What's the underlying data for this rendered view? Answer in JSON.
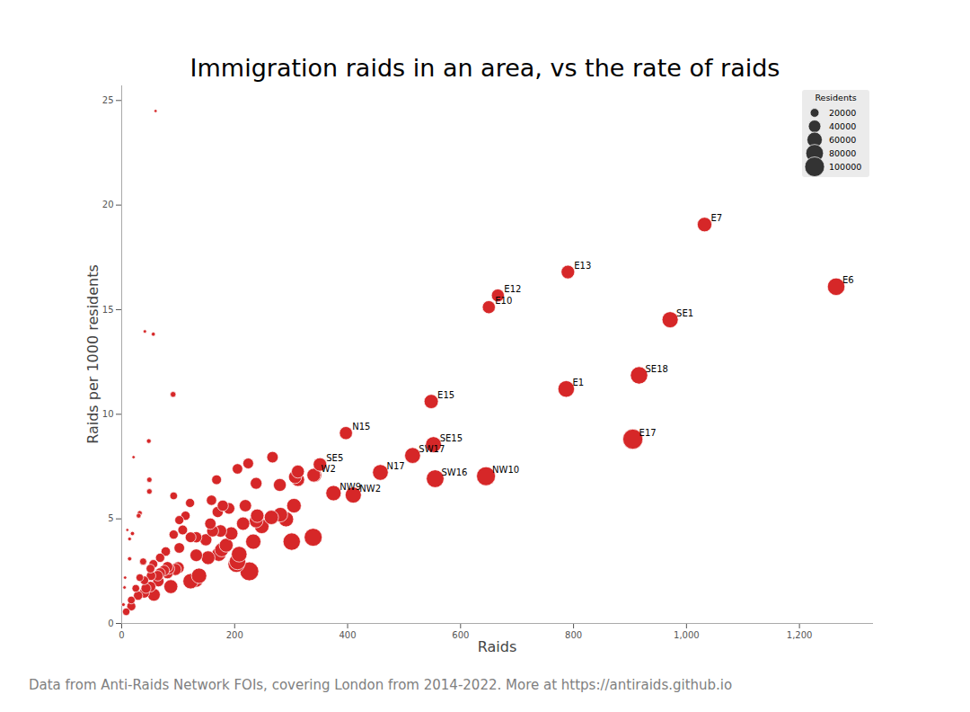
{
  "chart_data": {
    "type": "scatter",
    "title": "Immigration raids in an area, vs the rate of raids",
    "x_label": "Raids",
    "y_label": "Raids per 1000 residents",
    "caption": "Data from Anti-Raids Network FOIs, covering London from 2014-2022. More at https://antiraids.github.io",
    "color": "#d62728",
    "legend": "upper right",
    "size_title": "Residents",
    "size_ticks": [
      20000,
      40000,
      60000,
      80000,
      100000
    ],
    "xlim": [
      0,
      1331
    ],
    "xticks": [
      0,
      200,
      400,
      600,
      800,
      {
        "value": 1000,
        "label": "1,000"
      },
      {
        "value": 1200,
        "label": "1,200"
      }
    ],
    "ylim": [
      0,
      25.7
    ],
    "yticks": [
      0,
      5,
      10,
      15,
      20,
      25
    ],
    "grid": false,
    "labels": [
      "E6",
      "E7",
      "E13",
      "E12",
      "E10",
      "SE1",
      "SE18",
      "E1",
      "E15",
      "E17",
      "N15",
      "SE15",
      "SW17",
      "SE5",
      "W2",
      "N17",
      "SW16",
      "NW10",
      "NW9",
      "NW2",
      null,
      null,
      null,
      null,
      null,
      null,
      null,
      null,
      null,
      null,
      null,
      null,
      null,
      null,
      null,
      null,
      null,
      null,
      null,
      null,
      null,
      null,
      null,
      null,
      null,
      null,
      null,
      null,
      null,
      null,
      null,
      null,
      null,
      null,
      null,
      null,
      null,
      null,
      null,
      null,
      null,
      null,
      null,
      null,
      null,
      null,
      null,
      null,
      null,
      null,
      null,
      null,
      null,
      null,
      null,
      null,
      null,
      null,
      null,
      null,
      null,
      null,
      null,
      null,
      null,
      null,
      null,
      null,
      null,
      null,
      null,
      null,
      null,
      null,
      null,
      null,
      null,
      null,
      null,
      null,
      null,
      null,
      null,
      null,
      null,
      null,
      null,
      null,
      null,
      null,
      null,
      null,
      null,
      null,
      null,
      null
    ],
    "x": [
      1265,
      1032,
      790,
      666,
      650,
      971,
      916,
      787,
      548,
      905,
      397,
      552,
      515,
      351,
      342,
      458,
      555,
      645,
      375,
      410,
      60,
      41,
      56,
      91,
      48,
      21,
      49,
      49,
      32,
      30,
      10,
      19,
      14,
      14,
      38,
      6,
      5,
      3,
      8,
      168,
      205,
      224,
      267,
      238,
      280,
      307,
      312,
      312,
      340,
      92,
      121,
      159,
      113,
      102,
      108,
      92,
      122,
      132,
      102,
      78,
      170,
      179,
      190,
      219,
      157,
      175,
      161,
      149,
      194,
      215,
      240,
      248,
      238,
      265,
      281,
      291,
      305,
      185,
      177,
      172,
      208,
      205,
      203,
      226,
      233,
      301,
      339,
      153,
      132,
      137,
      122,
      131,
      68,
      51,
      75,
      84,
      100,
      95,
      68,
      81,
      52,
      64,
      32,
      40,
      65,
      25,
      43,
      51,
      87,
      57,
      40,
      29,
      17,
      17,
      81,
      56
    ],
    "values": [
      16.1,
      19.07,
      16.8,
      15.68,
      15.12,
      14.52,
      11.86,
      11.21,
      10.61,
      8.81,
      9.1,
      8.55,
      8.03,
      7.6,
      7.09,
      7.22,
      6.92,
      7.04,
      6.23,
      6.14,
      24.5,
      13.96,
      13.83,
      10.95,
      8.72,
      7.95,
      6.87,
      6.31,
      5.28,
      5.15,
      4.47,
      4.3,
      4.04,
      3.09,
      2.96,
      2.19,
      1.72,
      0.9,
      0.56,
      6.87,
      7.39,
      7.65,
      7.95,
      6.7,
      6.62,
      7.0,
      7.26,
      6.87,
      7.09,
      6.1,
      5.76,
      5.89,
      5.15,
      4.94,
      4.47,
      4.25,
      4.12,
      4.12,
      3.61,
      3.44,
      5.33,
      5.63,
      5.5,
      5.63,
      4.77,
      4.42,
      4.42,
      4.0,
      4.3,
      4.77,
      5.15,
      4.64,
      4.9,
      5.07,
      5.2,
      4.98,
      5.63,
      3.74,
      3.52,
      3.31,
      3.31,
      2.96,
      2.84,
      2.49,
      3.91,
      3.91,
      4.12,
      3.14,
      3.26,
      2.28,
      2.02,
      2.1,
      3.14,
      2.62,
      2.53,
      2.62,
      2.66,
      2.58,
      2.41,
      2.41,
      2.28,
      2.28,
      2.19,
      2.06,
      2.02,
      1.68,
      1.68,
      1.76,
      1.76,
      1.37,
      1.46,
      1.33,
      1.12,
      0.82,
      2.7,
      2.84
    ],
    "residents": [
      78600,
      54100,
      47000,
      42500,
      43000,
      66900,
      77200,
      70200,
      51700,
      102700,
      43600,
      64600,
      64100,
      46200,
      48200,
      63400,
      80200,
      91600,
      60200,
      66800,
      2450,
      2940,
      4050,
      8310,
      5500,
      2640,
      7130,
      7770,
      6060,
      5830,
      2240,
      4420,
      3470,
      4530,
      12840,
      2740,
      2910,
      3330,
      14290,
      24450,
      27740,
      29280,
      33580,
      35520,
      42300,
      43860,
      42980,
      45410,
      47950,
      15080,
      21010,
      26990,
      21940,
      20650,
      24160,
      21650,
      29610,
      32040,
      28250,
      22670,
      31890,
      31790,
      34550,
      38900,
      32910,
      39590,
      36430,
      37250,
      45120,
      45070,
      46600,
      53450,
      48570,
      52270,
      54040,
      58430,
      54170,
      49470,
      50280,
      51960,
      62840,
      69260,
      71480,
      90760,
      59590,
      76980,
      82280,
      48730,
      40490,
      60090,
      60400,
      62380,
      21660,
      19470,
      29640,
      32060,
      37590,
      36820,
      28220,
      33610,
      22810,
      28070,
      14610,
      19420,
      32180,
      14880,
      25600,
      28980,
      49430,
      41610,
      27400,
      21800,
      15180,
      20730,
      30000,
      19720
    ]
  }
}
